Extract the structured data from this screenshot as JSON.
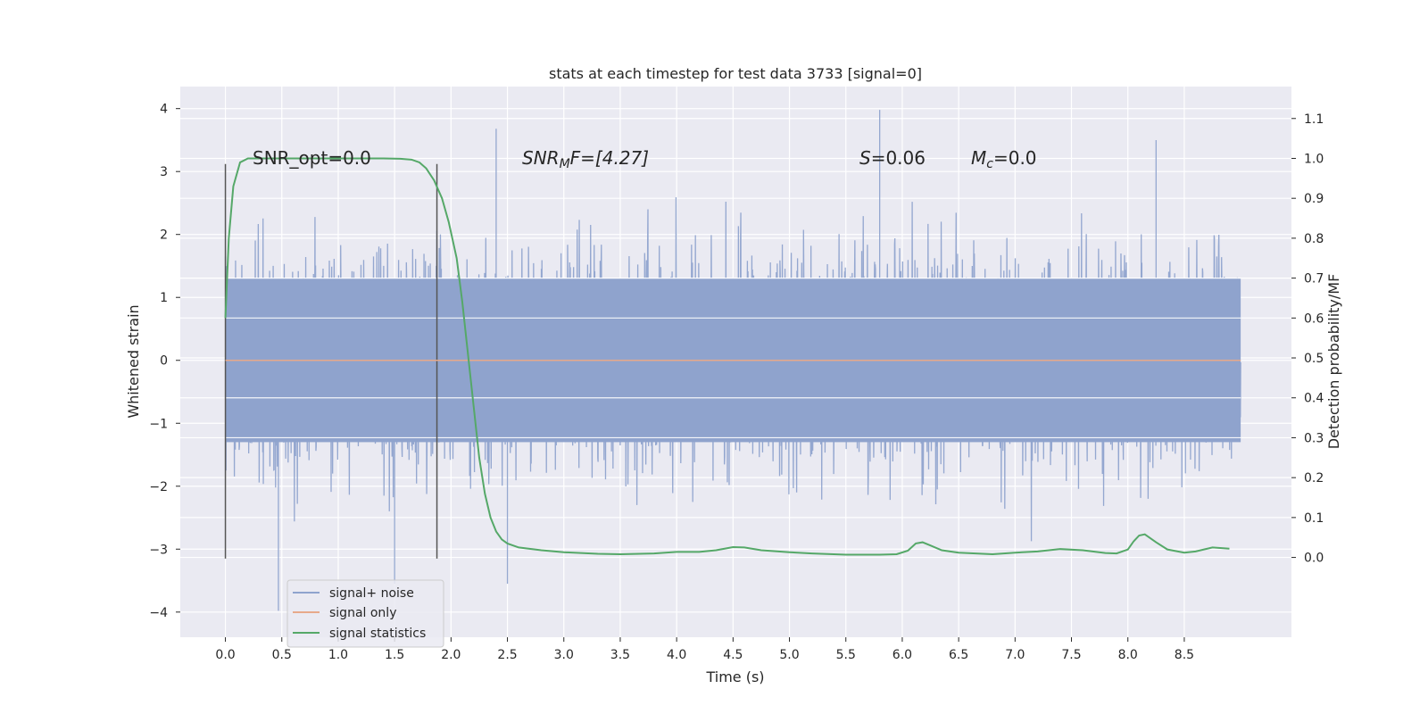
{
  "chart_data": {
    "type": "line",
    "title": "stats at each timestep for test data 3733 [signal=0]",
    "xlabel": "Time (s)",
    "ylabel": "Whitened strain",
    "y2label": "Detection probability/MF",
    "xlim": [
      -0.4,
      9.45
    ],
    "ylim": [
      -4.4,
      4.35
    ],
    "y2lim": [
      -0.2,
      1.18
    ],
    "x_ticks": [
      "0.0",
      "0.5",
      "1.0",
      "1.5",
      "2.0",
      "2.5",
      "3.0",
      "3.5",
      "4.0",
      "4.5",
      "5.0",
      "5.5",
      "6.0",
      "6.5",
      "7.0",
      "7.5",
      "8.0",
      "8.5"
    ],
    "y_ticks": [
      "4",
      "3",
      "2",
      "1",
      "0",
      "−1",
      "−2",
      "−3",
      "−4"
    ],
    "y2_ticks": [
      "1.1",
      "1.0",
      "0.9",
      "0.8",
      "0.7",
      "0.6",
      "0.5",
      "0.4",
      "0.3",
      "0.2",
      "0.1",
      "0.0"
    ],
    "grid": true,
    "legend_position": "lower-left",
    "annotations": {
      "snr_opt": "SNR_opt=0.0",
      "snr_mf_main": "SNR",
      "snr_mf_sub": "M",
      "snr_mf_rest": "F=[4.27]",
      "s_main": "S",
      "s_rest": "=0.06",
      "mc_main": "M",
      "mc_sub": "c",
      "mc_rest": "=0.0"
    },
    "window_markers_x": [
      0.0,
      1.875
    ],
    "series": [
      {
        "name": "signal+ noise",
        "color": "#8fa3cd",
        "x_range": [
          0.0,
          9.0
        ],
        "envelope_y": [
          -4.0,
          4.0
        ],
        "core_y": [
          -1.3,
          1.3
        ],
        "notable_peaks": [
          {
            "x": 0.47,
            "y": -3.98
          },
          {
            "x": 1.5,
            "y": -3.55
          },
          {
            "x": 2.4,
            "y": 3.68
          },
          {
            "x": 2.5,
            "y": -3.55
          },
          {
            "x": 5.8,
            "y": 3.98
          },
          {
            "x": 8.25,
            "y": 3.5
          }
        ]
      },
      {
        "name": "signal only",
        "color": "#e7a98a",
        "x": [
          0.0,
          9.0
        ],
        "y": [
          0.0,
          0.0
        ]
      },
      {
        "name": "signal statistics",
        "color": "#55a868",
        "x": [
          0.0,
          0.03,
          0.07,
          0.13,
          0.2,
          0.3,
          0.5,
          0.8,
          1.1,
          1.4,
          1.55,
          1.65,
          1.72,
          1.78,
          1.85,
          1.92,
          1.98,
          2.05,
          2.1,
          2.15,
          2.2,
          2.25,
          2.3,
          2.35,
          2.4,
          2.45,
          2.5,
          2.6,
          2.8,
          3.0,
          3.3,
          3.5,
          3.8,
          4.0,
          4.2,
          4.35,
          4.5,
          4.6,
          4.75,
          5.0,
          5.2,
          5.5,
          5.8,
          5.95,
          6.05,
          6.12,
          6.18,
          6.25,
          6.35,
          6.5,
          6.8,
          7.0,
          7.2,
          7.4,
          7.6,
          7.8,
          7.9,
          8.0,
          8.05,
          8.1,
          8.15,
          8.25,
          8.35,
          8.5,
          8.6,
          8.75,
          8.9
        ],
        "y": [
          0.6,
          0.8,
          0.93,
          0.99,
          1.0,
          1.0,
          1.0,
          1.0,
          1.0,
          1.0,
          0.999,
          0.997,
          0.99,
          0.975,
          0.945,
          0.9,
          0.84,
          0.75,
          0.64,
          0.51,
          0.38,
          0.25,
          0.16,
          0.1,
          0.065,
          0.045,
          0.035,
          0.025,
          0.018,
          0.013,
          0.009,
          0.008,
          0.01,
          0.014,
          0.014,
          0.018,
          0.026,
          0.025,
          0.018,
          0.013,
          0.01,
          0.007,
          0.007,
          0.008,
          0.017,
          0.035,
          0.038,
          0.03,
          0.018,
          0.012,
          0.008,
          0.012,
          0.015,
          0.021,
          0.018,
          0.011,
          0.01,
          0.02,
          0.04,
          0.055,
          0.058,
          0.038,
          0.02,
          0.012,
          0.015,
          0.025,
          0.022
        ]
      }
    ]
  }
}
